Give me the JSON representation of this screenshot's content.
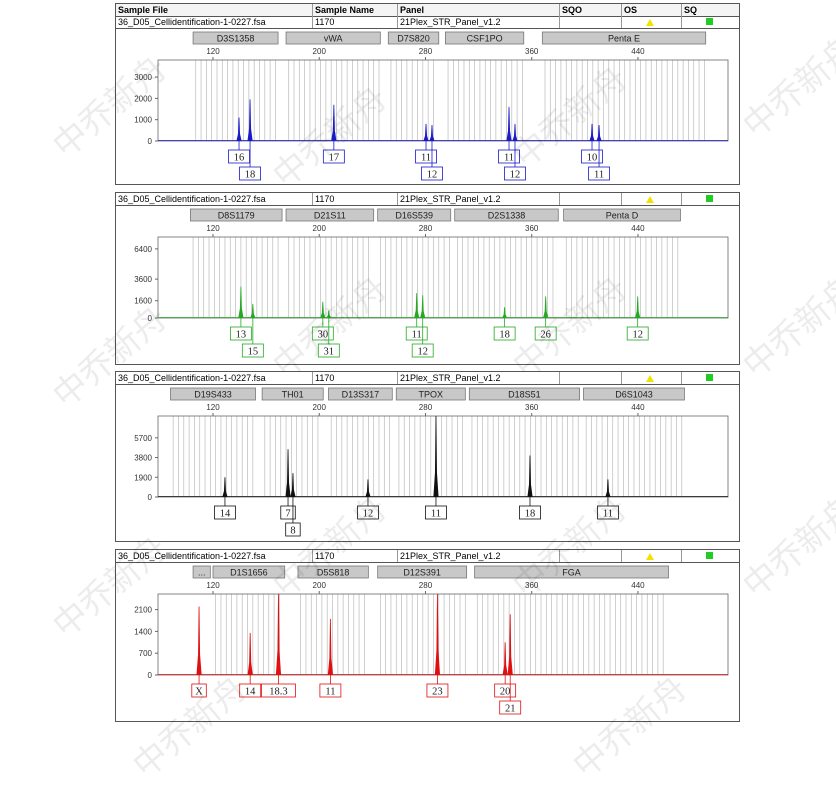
{
  "columns": {
    "sample_file": "Sample File",
    "sample_name": "Sample Name",
    "panel": "Panel",
    "sqo": "SQO",
    "os": "OS",
    "sq": "SQ"
  },
  "watermark": "中乔新舟",
  "colors": {
    "blue": "#1a1acc",
    "green": "#22aa22",
    "black": "#111111",
    "red": "#e01010",
    "os_flag": "#f2e200",
    "sq_flag": "#22cc22"
  },
  "chart_data": [
    {
      "type": "line",
      "sample_file": "36_D05_Cellidentification-1-0227.fsa",
      "sample_name": "1170",
      "panel": "21Plex_STR_Panel_v1.2",
      "dye": "blue",
      "x_ticks": [
        120,
        200,
        280,
        360,
        440
      ],
      "xlim": [
        78,
        508
      ],
      "y_ticks": [
        0,
        1000,
        2000,
        3000
      ],
      "ylim": [
        0,
        3800
      ],
      "markers": [
        {
          "name": "D3S1358",
          "range": [
            105,
            169
          ]
        },
        {
          "name": "vWA",
          "range": [
            175,
            246
          ]
        },
        {
          "name": "D7S820",
          "range": [
            252,
            290
          ]
        },
        {
          "name": "CSF1PO",
          "range": [
            295,
            354
          ]
        },
        {
          "name": "Penta E",
          "range": [
            368,
            491
          ]
        }
      ],
      "peaks": [
        {
          "bp": 139.6,
          "h": 1100
        },
        {
          "bp": 147.9,
          "h": 1950
        },
        {
          "bp": 211,
          "h": 1700
        },
        {
          "bp": 280.4,
          "h": 800
        },
        {
          "bp": 284.9,
          "h": 750
        },
        {
          "bp": 342.9,
          "h": 1600
        },
        {
          "bp": 347.4,
          "h": 800
        },
        {
          "bp": 405.4,
          "h": 800
        },
        {
          "bp": 410.7,
          "h": 750
        }
      ],
      "alleles": [
        {
          "label": "16",
          "bp": 139.6,
          "row": 1
        },
        {
          "label": "18",
          "bp": 147.9,
          "row": 2
        },
        {
          "label": "17",
          "bp": 211,
          "row": 1
        },
        {
          "label": "11",
          "bp": 280.4,
          "row": 1
        },
        {
          "label": "12",
          "bp": 284.9,
          "row": 2
        },
        {
          "label": "11",
          "bp": 342.9,
          "row": 1
        },
        {
          "label": "12",
          "bp": 347.4,
          "row": 2
        },
        {
          "label": "10",
          "bp": 405.4,
          "row": 1
        },
        {
          "label": "11",
          "bp": 410.7,
          "row": 2
        }
      ]
    },
    {
      "type": "line",
      "sample_file": "36_D05_Cellidentification-1-0227.fsa",
      "sample_name": "1170",
      "panel": "21Plex_STR_Panel_v1.2",
      "dye": "green",
      "x_ticks": [
        120,
        200,
        280,
        360,
        440
      ],
      "xlim": [
        78,
        508
      ],
      "y_ticks": [
        0,
        1600,
        3600,
        6400
      ],
      "ylim": [
        0,
        7500
      ],
      "markers": [
        {
          "name": "D8S1179",
          "range": [
            103,
            172
          ]
        },
        {
          "name": "D21S11",
          "range": [
            175,
            241
          ]
        },
        {
          "name": "D16S539",
          "range": [
            244,
            299
          ]
        },
        {
          "name": "D2S1338",
          "range": [
            302,
            380
          ]
        },
        {
          "name": "Penta D",
          "range": [
            384,
            472
          ]
        }
      ],
      "peaks": [
        {
          "bp": 141,
          "h": 2900
        },
        {
          "bp": 150,
          "h": 1300
        },
        {
          "bp": 202.7,
          "h": 1500
        },
        {
          "bp": 207.2,
          "h": 700
        },
        {
          "bp": 273.4,
          "h": 2300
        },
        {
          "bp": 277.9,
          "h": 2100
        },
        {
          "bp": 339.6,
          "h": 1000
        },
        {
          "bp": 370.5,
          "h": 2000
        },
        {
          "bp": 439.8,
          "h": 2000
        }
      ],
      "alleles": [
        {
          "label": "13",
          "bp": 141,
          "row": 1
        },
        {
          "label": "15",
          "bp": 150,
          "row": 2
        },
        {
          "label": "30",
          "bp": 202.7,
          "row": 1
        },
        {
          "label": "31",
          "bp": 207.2,
          "row": 2
        },
        {
          "label": "11",
          "bp": 273.4,
          "row": 1
        },
        {
          "label": "12",
          "bp": 277.9,
          "row": 2
        },
        {
          "label": "18",
          "bp": 339.6,
          "row": 1
        },
        {
          "label": "26",
          "bp": 370.5,
          "row": 1
        },
        {
          "label": "12",
          "bp": 439.8,
          "row": 1
        }
      ]
    },
    {
      "type": "line",
      "sample_file": "36_D05_Cellidentification-1-0227.fsa",
      "sample_name": "1170",
      "panel": "21Plex_STR_Panel_v1.2",
      "dye": "black",
      "x_ticks": [
        120,
        200,
        280,
        360,
        440
      ],
      "xlim": [
        78,
        508
      ],
      "y_ticks": [
        0,
        1900,
        3800,
        5700
      ],
      "ylim": [
        0,
        7800
      ],
      "markers": [
        {
          "name": "D19S433",
          "range": [
            88,
            152
          ]
        },
        {
          "name": "TH01",
          "range": [
            157,
            203
          ]
        },
        {
          "name": "D13S317",
          "range": [
            207,
            255
          ]
        },
        {
          "name": "TPOX",
          "range": [
            258,
            310
          ]
        },
        {
          "name": "D18S51",
          "range": [
            313,
            396
          ]
        },
        {
          "name": "D6S1043",
          "range": [
            399,
            475
          ]
        }
      ],
      "peaks": [
        {
          "bp": 129,
          "h": 1900
        },
        {
          "bp": 176.5,
          "h": 4600
        },
        {
          "bp": 180.2,
          "h": 2300
        },
        {
          "bp": 236.7,
          "h": 1700
        },
        {
          "bp": 287.9,
          "h": 7800
        },
        {
          "bp": 358.7,
          "h": 4000
        },
        {
          "bp": 417.4,
          "h": 1700
        }
      ],
      "alleles": [
        {
          "label": "14",
          "bp": 129,
          "row": 1
        },
        {
          "label": "7",
          "bp": 176.5,
          "row": 1
        },
        {
          "label": "8",
          "bp": 180.2,
          "row": 2
        },
        {
          "label": "12",
          "bp": 236.7,
          "row": 1
        },
        {
          "label": "11",
          "bp": 287.9,
          "row": 1
        },
        {
          "label": "18",
          "bp": 358.7,
          "row": 1
        },
        {
          "label": "11",
          "bp": 417.4,
          "row": 1
        }
      ]
    },
    {
      "type": "line",
      "sample_file": "36_D05_Cellidentification-1-0227.fsa",
      "sample_name": "1170",
      "panel": "21Plex_STR_Panel_v1.2",
      "dye": "red",
      "x_ticks": [
        120,
        200,
        280,
        360,
        440
      ],
      "xlim": [
        78,
        508
      ],
      "y_ticks": [
        0,
        700,
        1400,
        2100
      ],
      "ylim": [
        0,
        2600
      ],
      "markers": [
        {
          "name": "...",
          "range": [
            105,
            118
          ]
        },
        {
          "name": "D1S1656",
          "range": [
            120,
            174
          ]
        },
        {
          "name": "D5S818",
          "range": [
            184,
            237
          ]
        },
        {
          "name": "D12S391",
          "range": [
            244,
            311
          ]
        },
        {
          "name": "FGA",
          "range": [
            317,
            463
          ]
        }
      ],
      "peaks": [
        {
          "bp": 109.5,
          "h": 2200
        },
        {
          "bp": 148,
          "h": 1350
        },
        {
          "bp": 169.3,
          "h": 2600
        },
        {
          "bp": 208.4,
          "h": 1800
        },
        {
          "bp": 289,
          "h": 2600
        },
        {
          "bp": 340,
          "h": 1050
        },
        {
          "bp": 343.8,
          "h": 1950
        }
      ],
      "alleles": [
        {
          "label": "X",
          "bp": 109.5,
          "row": 1
        },
        {
          "label": "14",
          "bp": 148,
          "row": 1
        },
        {
          "label": "18.3",
          "bp": 169.3,
          "row": 1
        },
        {
          "label": "11",
          "bp": 208.4,
          "row": 1
        },
        {
          "label": "23",
          "bp": 289,
          "row": 1
        },
        {
          "label": "20",
          "bp": 340,
          "row": 1
        },
        {
          "label": "21",
          "bp": 343.8,
          "row": 2
        }
      ]
    }
  ]
}
